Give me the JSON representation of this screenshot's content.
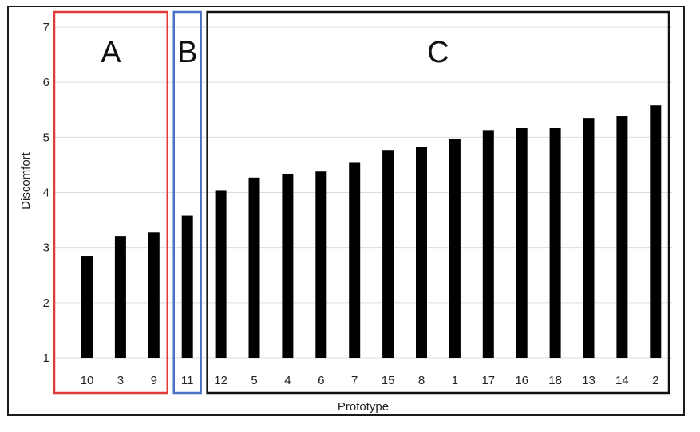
{
  "chart_data": {
    "type": "bar",
    "title": "",
    "xlabel": "Prototype",
    "ylabel": "Discomfort",
    "ylim": [
      1,
      7
    ],
    "yticks": [
      1,
      2,
      3,
      4,
      5,
      6,
      7
    ],
    "grid": true,
    "categories": [
      "10",
      "3",
      "9",
      "11",
      "12",
      "5",
      "4",
      "6",
      "7",
      "15",
      "8",
      "1",
      "17",
      "16",
      "18",
      "13",
      "14",
      "2"
    ],
    "values": [
      2.85,
      3.21,
      3.28,
      3.58,
      4.03,
      4.27,
      4.34,
      4.38,
      4.55,
      4.77,
      4.83,
      4.97,
      5.13,
      5.17,
      5.17,
      5.35,
      5.38,
      5.58
    ],
    "bar_color": "#000000",
    "groups": [
      {
        "label": "A",
        "first": 0,
        "last": 2,
        "color": "#e03a3a"
      },
      {
        "label": "B",
        "first": 3,
        "last": 3,
        "color": "#4a72c4"
      },
      {
        "label": "C",
        "first": 4,
        "last": 17,
        "color": "#111111"
      }
    ]
  }
}
